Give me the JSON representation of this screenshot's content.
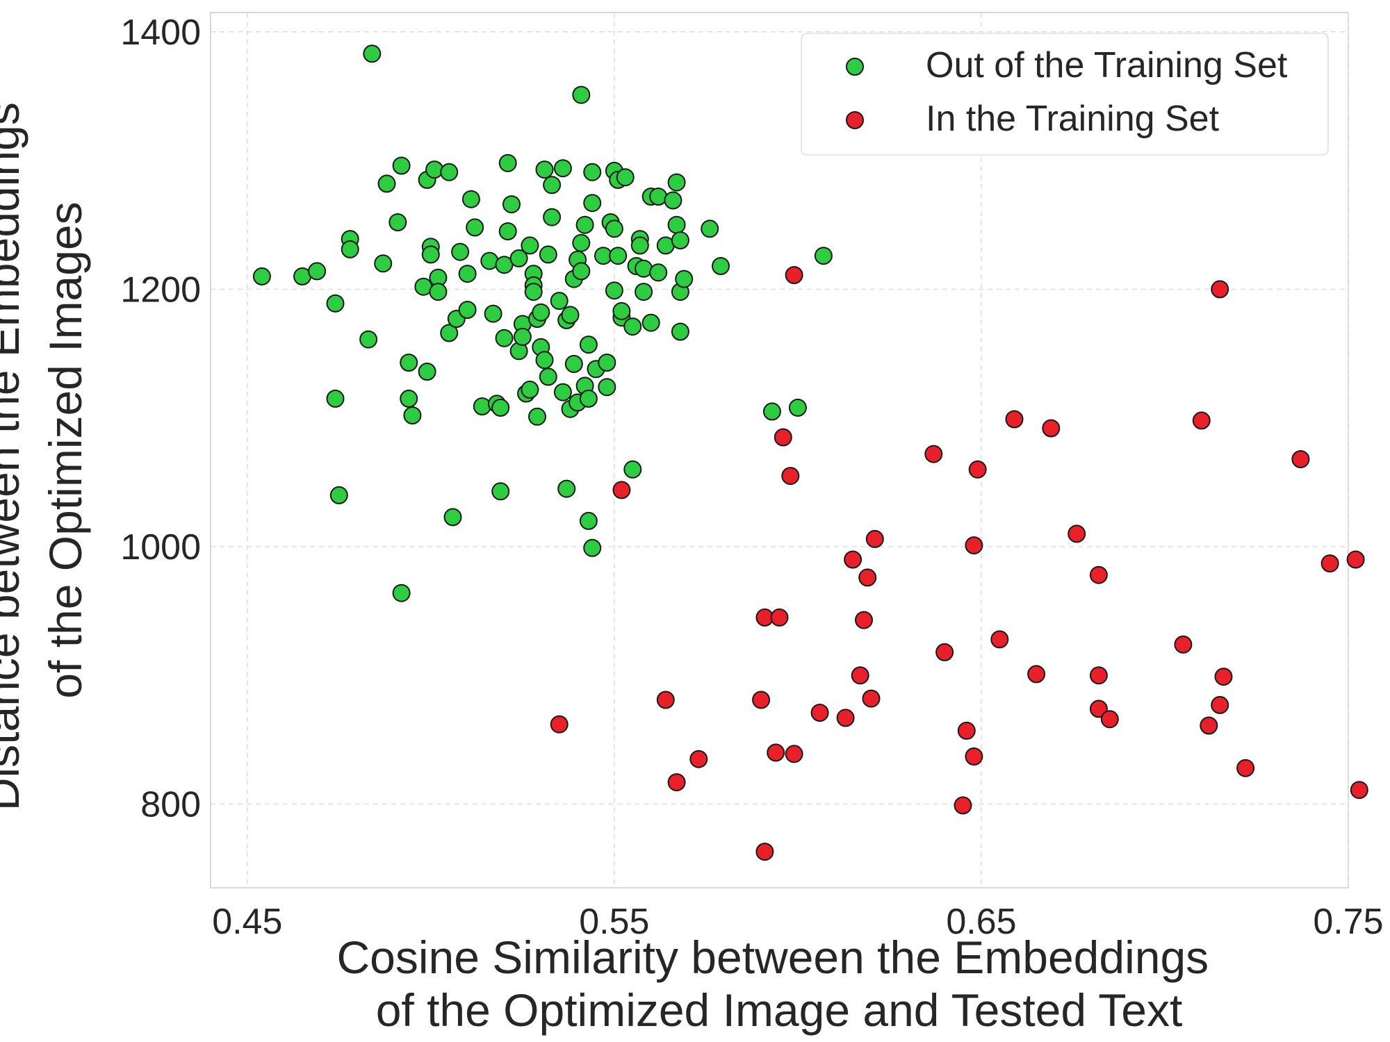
{
  "chart_data": {
    "type": "scatter",
    "title": "",
    "xlabel_lines": [
      "Cosine Similarity between the Embeddings",
      "of the Optimized Image and Tested Text"
    ],
    "ylabel_lines": [
      "Distance between the Embeddings",
      "of the Optimized Images"
    ],
    "xlim": [
      0.44,
      0.75
    ],
    "ylim": [
      735,
      1415
    ],
    "xticks": [
      0.45,
      0.55,
      0.65,
      0.75
    ],
    "xtick_labels": [
      "0.45",
      "0.55",
      "0.65",
      "0.75"
    ],
    "yticks": [
      800,
      1000,
      1200,
      1400
    ],
    "ytick_labels": [
      "800",
      "1000",
      "1200",
      "1400"
    ],
    "grid": true,
    "legend_position": "top-right",
    "series": [
      {
        "name": "Out of the Training Set",
        "color": "#2ecc40",
        "points": [
          [
            0.454,
            1210
          ],
          [
            0.465,
            1210
          ],
          [
            0.469,
            1214
          ],
          [
            0.474,
            1189
          ],
          [
            0.478,
            1239
          ],
          [
            0.478,
            1231
          ],
          [
            0.483,
            1161
          ],
          [
            0.487,
            1220
          ],
          [
            0.488,
            1282
          ],
          [
            0.491,
            1252
          ],
          [
            0.492,
            1296
          ],
          [
            0.494,
            1143
          ],
          [
            0.494,
            1115
          ],
          [
            0.495,
            1102
          ],
          [
            0.498,
            1202
          ],
          [
            0.499,
            1285
          ],
          [
            0.499,
            1136
          ],
          [
            0.5,
            1233
          ],
          [
            0.5,
            1227
          ],
          [
            0.501,
            1293
          ],
          [
            0.502,
            1209
          ],
          [
            0.502,
            1198
          ],
          [
            0.505,
            1166
          ],
          [
            0.505,
            1291
          ],
          [
            0.507,
            1177
          ],
          [
            0.508,
            1229
          ],
          [
            0.51,
            1212
          ],
          [
            0.51,
            1184
          ],
          [
            0.511,
            1270
          ],
          [
            0.512,
            1248
          ],
          [
            0.514,
            1109
          ],
          [
            0.516,
            1222
          ],
          [
            0.517,
            1181
          ],
          [
            0.518,
            1111
          ],
          [
            0.519,
            1108
          ],
          [
            0.52,
            1219
          ],
          [
            0.52,
            1162
          ],
          [
            0.521,
            1245
          ],
          [
            0.521,
            1298
          ],
          [
            0.522,
            1266
          ],
          [
            0.524,
            1224
          ],
          [
            0.524,
            1152
          ],
          [
            0.525,
            1173
          ],
          [
            0.525,
            1163
          ],
          [
            0.526,
            1119
          ],
          [
            0.527,
            1234
          ],
          [
            0.527,
            1122
          ],
          [
            0.528,
            1212
          ],
          [
            0.528,
            1203
          ],
          [
            0.528,
            1198
          ],
          [
            0.529,
            1177
          ],
          [
            0.529,
            1101
          ],
          [
            0.53,
            1182
          ],
          [
            0.53,
            1155
          ],
          [
            0.531,
            1145
          ],
          [
            0.531,
            1293
          ],
          [
            0.532,
            1132
          ],
          [
            0.532,
            1227
          ],
          [
            0.533,
            1256
          ],
          [
            0.533,
            1281
          ],
          [
            0.535,
            1191
          ],
          [
            0.536,
            1120
          ],
          [
            0.536,
            1294
          ],
          [
            0.537,
            1176
          ],
          [
            0.538,
            1180
          ],
          [
            0.538,
            1107
          ],
          [
            0.539,
            1142
          ],
          [
            0.539,
            1208
          ],
          [
            0.54,
            1112
          ],
          [
            0.54,
            1223
          ],
          [
            0.541,
            1214
          ],
          [
            0.541,
            1236
          ],
          [
            0.542,
            1250
          ],
          [
            0.542,
            1125
          ],
          [
            0.543,
            1115
          ],
          [
            0.543,
            1157
          ],
          [
            0.544,
            1291
          ],
          [
            0.544,
            1267
          ],
          [
            0.545,
            1138
          ],
          [
            0.547,
            1226
          ],
          [
            0.548,
            1143
          ],
          [
            0.548,
            1124
          ],
          [
            0.549,
            1252
          ],
          [
            0.55,
            1247
          ],
          [
            0.55,
            1292
          ],
          [
            0.55,
            1199
          ],
          [
            0.551,
            1226
          ],
          [
            0.551,
            1285
          ],
          [
            0.552,
            1178
          ],
          [
            0.552,
            1183
          ],
          [
            0.553,
            1287
          ],
          [
            0.555,
            1171
          ],
          [
            0.556,
            1218
          ],
          [
            0.557,
            1239
          ],
          [
            0.557,
            1234
          ],
          [
            0.558,
            1216
          ],
          [
            0.558,
            1198
          ],
          [
            0.56,
            1174
          ],
          [
            0.56,
            1272
          ],
          [
            0.562,
            1213
          ],
          [
            0.562,
            1272
          ],
          [
            0.564,
            1234
          ],
          [
            0.566,
            1269
          ],
          [
            0.567,
            1283
          ],
          [
            0.567,
            1250
          ],
          [
            0.568,
            1238
          ],
          [
            0.568,
            1198
          ],
          [
            0.568,
            1167
          ],
          [
            0.569,
            1208
          ],
          [
            0.576,
            1247
          ],
          [
            0.579,
            1218
          ],
          [
            0.607,
            1226
          ],
          [
            0.484,
            1383
          ],
          [
            0.541,
            1351
          ],
          [
            0.474,
            1115
          ],
          [
            0.475,
            1040
          ],
          [
            0.519,
            1043
          ],
          [
            0.537,
            1045
          ],
          [
            0.543,
            1020
          ],
          [
            0.544,
            999
          ],
          [
            0.492,
            964
          ],
          [
            0.506,
            1023
          ],
          [
            0.555,
            1060
          ],
          [
            0.6,
            1108
          ],
          [
            0.593,
            1105
          ]
        ]
      },
      {
        "name": "In the Training Set",
        "color": "#e8202a",
        "points": [
          [
            0.552,
            1044
          ],
          [
            0.599,
            1211
          ],
          [
            0.715,
            1200
          ],
          [
            0.596,
            1085
          ],
          [
            0.598,
            1055
          ],
          [
            0.637,
            1072
          ],
          [
            0.649,
            1060
          ],
          [
            0.659,
            1099
          ],
          [
            0.669,
            1092
          ],
          [
            0.676,
            1010
          ],
          [
            0.71,
            1098
          ],
          [
            0.737,
            1068
          ],
          [
            0.615,
            990
          ],
          [
            0.621,
            1006
          ],
          [
            0.619,
            976
          ],
          [
            0.648,
            1001
          ],
          [
            0.682,
            978
          ],
          [
            0.745,
            987
          ],
          [
            0.752,
            990
          ],
          [
            0.591,
            945
          ],
          [
            0.595,
            945
          ],
          [
            0.618,
            943
          ],
          [
            0.64,
            918
          ],
          [
            0.655,
            928
          ],
          [
            0.665,
            901
          ],
          [
            0.682,
            900
          ],
          [
            0.705,
            924
          ],
          [
            0.716,
            899
          ],
          [
            0.617,
            900
          ],
          [
            0.564,
            881
          ],
          [
            0.567,
            817
          ],
          [
            0.573,
            835
          ],
          [
            0.59,
            881
          ],
          [
            0.594,
            840
          ],
          [
            0.599,
            839
          ],
          [
            0.606,
            871
          ],
          [
            0.613,
            867
          ],
          [
            0.62,
            882
          ],
          [
            0.646,
            857
          ],
          [
            0.648,
            837
          ],
          [
            0.645,
            799
          ],
          [
            0.591,
            763
          ],
          [
            0.682,
            874
          ],
          [
            0.685,
            866
          ],
          [
            0.712,
            861
          ],
          [
            0.715,
            877
          ],
          [
            0.722,
            828
          ],
          [
            0.753,
            811
          ],
          [
            0.535,
            862
          ]
        ]
      }
    ]
  }
}
